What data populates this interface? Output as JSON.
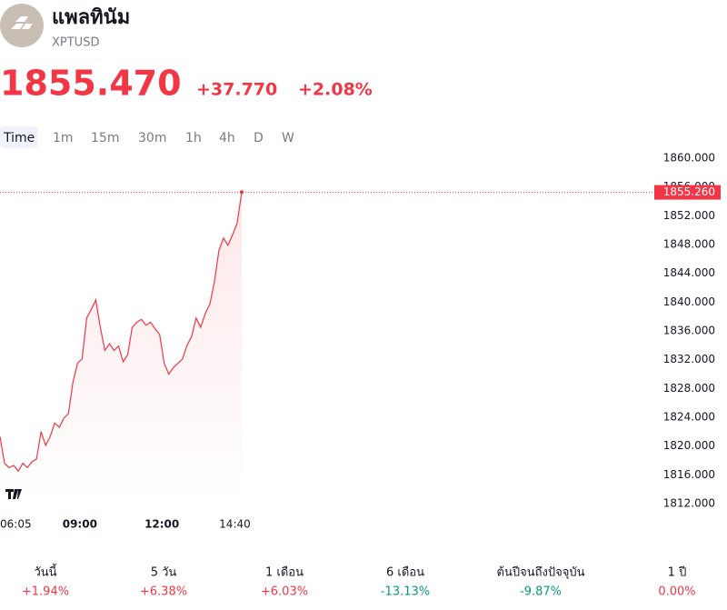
{
  "header": {
    "title": "แพลทินัม",
    "symbol": "XPTUSD",
    "price": "1855.470",
    "change": "+37.770",
    "change_percent": "+2.08%"
  },
  "timeframes": {
    "items": [
      "Time",
      "1m",
      "15m",
      "30m",
      "1h",
      "4h",
      "D",
      "W"
    ],
    "active": 0
  },
  "chart_data": {
    "type": "line",
    "color": "#f23645",
    "x": [
      "06:05",
      "06:15",
      "06:25",
      "06:35",
      "06:45",
      "06:55",
      "07:05",
      "07:15",
      "07:25",
      "07:35",
      "07:45",
      "07:55",
      "08:05",
      "08:15",
      "08:25",
      "08:35",
      "08:45",
      "08:55",
      "09:05",
      "09:15",
      "09:25",
      "09:35",
      "09:45",
      "09:55",
      "10:05",
      "10:15",
      "10:25",
      "10:35",
      "10:45",
      "10:55",
      "11:05",
      "11:15",
      "11:25",
      "11:35",
      "11:45",
      "11:55",
      "12:05",
      "12:15",
      "12:25",
      "12:35",
      "12:45",
      "12:55",
      "13:05",
      "13:15",
      "13:25",
      "13:35",
      "13:45",
      "13:55",
      "14:05",
      "14:15",
      "14:25",
      "14:35",
      "14:45",
      "14:55"
    ],
    "values": [
      1821.3,
      1817.6,
      1817.0,
      1817.3,
      1816.5,
      1817.6,
      1817.0,
      1817.8,
      1818.2,
      1822.0,
      1820.1,
      1821.3,
      1823.2,
      1822.6,
      1823.9,
      1824.5,
      1828.9,
      1831.5,
      1832.1,
      1837.8,
      1839.0,
      1840.3,
      1836.5,
      1833.3,
      1834.2,
      1833.3,
      1833.9,
      1831.7,
      1832.7,
      1836.5,
      1837.2,
      1837.6,
      1836.8,
      1837.2,
      1836.3,
      1835.5,
      1831.5,
      1830.0,
      1830.9,
      1831.5,
      1832.1,
      1834.0,
      1835.2,
      1837.8,
      1836.5,
      1838.4,
      1839.7,
      1842.8,
      1847.2,
      1848.9,
      1847.9,
      1849.4,
      1851.0,
      1855.3
    ],
    "xlim": [
      "06:05",
      "14:55"
    ],
    "xticks": [
      "06:05",
      "09:00",
      "12:00",
      "14:40"
    ],
    "ylim": [
      1810.6,
      1861.4
    ],
    "yticks": [
      {
        "value": 1812,
        "label": "1812.000"
      },
      {
        "value": 1816,
        "label": "1816.000"
      },
      {
        "value": 1820,
        "label": "1820.000"
      },
      {
        "value": 1824,
        "label": "1824.000"
      },
      {
        "value": 1828,
        "label": "1828.000"
      },
      {
        "value": 1832,
        "label": "1832.000"
      },
      {
        "value": 1836,
        "label": "1836.000"
      },
      {
        "value": 1840,
        "label": "1840.000"
      },
      {
        "value": 1844,
        "label": "1844.000"
      },
      {
        "value": 1848,
        "label": "1848.000"
      },
      {
        "value": 1852,
        "label": "1852.000"
      },
      {
        "value": 1856,
        "label": "1856.000"
      },
      {
        "value": 1860,
        "label": "1860.000"
      }
    ],
    "last_value": {
      "value": 1855.26,
      "label": "1855.260"
    }
  },
  "performance": [
    {
      "label": "วันนี้",
      "value": "+1.94%"
    },
    {
      "label": "5 วัน",
      "value": "+6.38%"
    },
    {
      "label": "1 เดือน",
      "value": "+6.03%"
    },
    {
      "label": "6 เดือน",
      "value": "-13.13%"
    },
    {
      "label": "ต้นปีจนถึงปัจจุบัน",
      "value": "-9.87%"
    },
    {
      "label": "1 ปี",
      "value": "0.00%"
    }
  ]
}
